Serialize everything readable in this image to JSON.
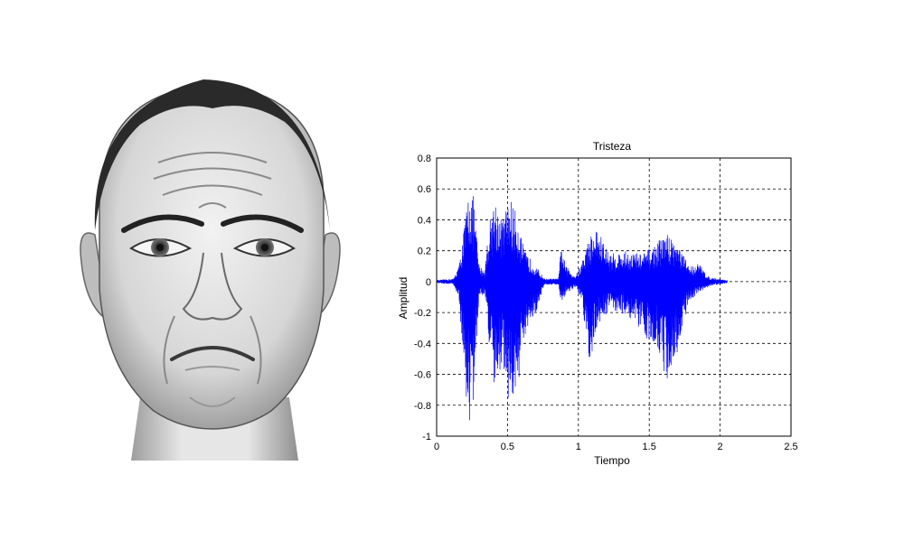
{
  "illustration": {
    "subject": "sad-face",
    "style": "grayscale pencil drawing"
  },
  "chart_data": {
    "type": "line",
    "title": "Tristeza",
    "xlabel": "Tiempo",
    "ylabel": "Amplitud",
    "xlim": [
      0,
      2.5
    ],
    "ylim": [
      -1,
      0.8
    ],
    "xticks": [
      0,
      0.5,
      1,
      1.5,
      2,
      2.5
    ],
    "xtick_labels": [
      "0",
      "0.5",
      "1",
      "1.5",
      "2",
      "2.5"
    ],
    "yticks": [
      0.8,
      0.6,
      0.4,
      0.2,
      0,
      -0.2,
      -0.4,
      -0.6,
      -0.8,
      -1
    ],
    "ytick_labels": [
      "0.8",
      "0.6",
      "0.4",
      "0.2",
      "0",
      "-0.2",
      "-0.4",
      "-0.6",
      "-0.8",
      "-1"
    ],
    "grid": true,
    "grid_style": "dashed",
    "line_color": "#0000ff",
    "series": [
      {
        "envelope": [
          {
            "t": 0.0,
            "max": 0.01,
            "min": -0.01
          },
          {
            "t": 0.12,
            "max": 0.02,
            "min": -0.02
          },
          {
            "t": 0.16,
            "max": 0.12,
            "min": -0.15
          },
          {
            "t": 0.2,
            "max": 0.4,
            "min": -0.7
          },
          {
            "t": 0.23,
            "max": 0.62,
            "min": -0.95
          },
          {
            "t": 0.26,
            "max": 0.55,
            "min": -0.8
          },
          {
            "t": 0.3,
            "max": 0.1,
            "min": -0.1
          },
          {
            "t": 0.34,
            "max": 0.08,
            "min": -0.08
          },
          {
            "t": 0.37,
            "max": 0.38,
            "min": -0.4
          },
          {
            "t": 0.41,
            "max": 0.55,
            "min": -0.78
          },
          {
            "t": 0.46,
            "max": 0.4,
            "min": -0.5
          },
          {
            "t": 0.52,
            "max": 0.55,
            "min": -0.85
          },
          {
            "t": 0.57,
            "max": 0.42,
            "min": -0.7
          },
          {
            "t": 0.62,
            "max": 0.2,
            "min": -0.4
          },
          {
            "t": 0.7,
            "max": 0.1,
            "min": -0.2
          },
          {
            "t": 0.76,
            "max": 0.02,
            "min": -0.02
          },
          {
            "t": 0.86,
            "max": 0.02,
            "min": -0.02
          },
          {
            "t": 0.88,
            "max": 0.25,
            "min": -0.15
          },
          {
            "t": 0.91,
            "max": 0.1,
            "min": -0.08
          },
          {
            "t": 0.98,
            "max": 0.04,
            "min": -0.04
          },
          {
            "t": 1.02,
            "max": 0.12,
            "min": -0.12
          },
          {
            "t": 1.08,
            "max": 0.3,
            "min": -0.55
          },
          {
            "t": 1.13,
            "max": 0.35,
            "min": -0.3
          },
          {
            "t": 1.22,
            "max": 0.18,
            "min": -0.18
          },
          {
            "t": 1.35,
            "max": 0.2,
            "min": -0.22
          },
          {
            "t": 1.45,
            "max": 0.18,
            "min": -0.35
          },
          {
            "t": 1.55,
            "max": 0.25,
            "min": -0.4
          },
          {
            "t": 1.62,
            "max": 0.32,
            "min": -0.65
          },
          {
            "t": 1.7,
            "max": 0.25,
            "min": -0.45
          },
          {
            "t": 1.78,
            "max": 0.1,
            "min": -0.12
          },
          {
            "t": 1.85,
            "max": 0.12,
            "min": -0.08
          },
          {
            "t": 1.92,
            "max": 0.03,
            "min": -0.03
          },
          {
            "t": 2.05,
            "max": 0.01,
            "min": -0.01
          }
        ]
      }
    ]
  }
}
